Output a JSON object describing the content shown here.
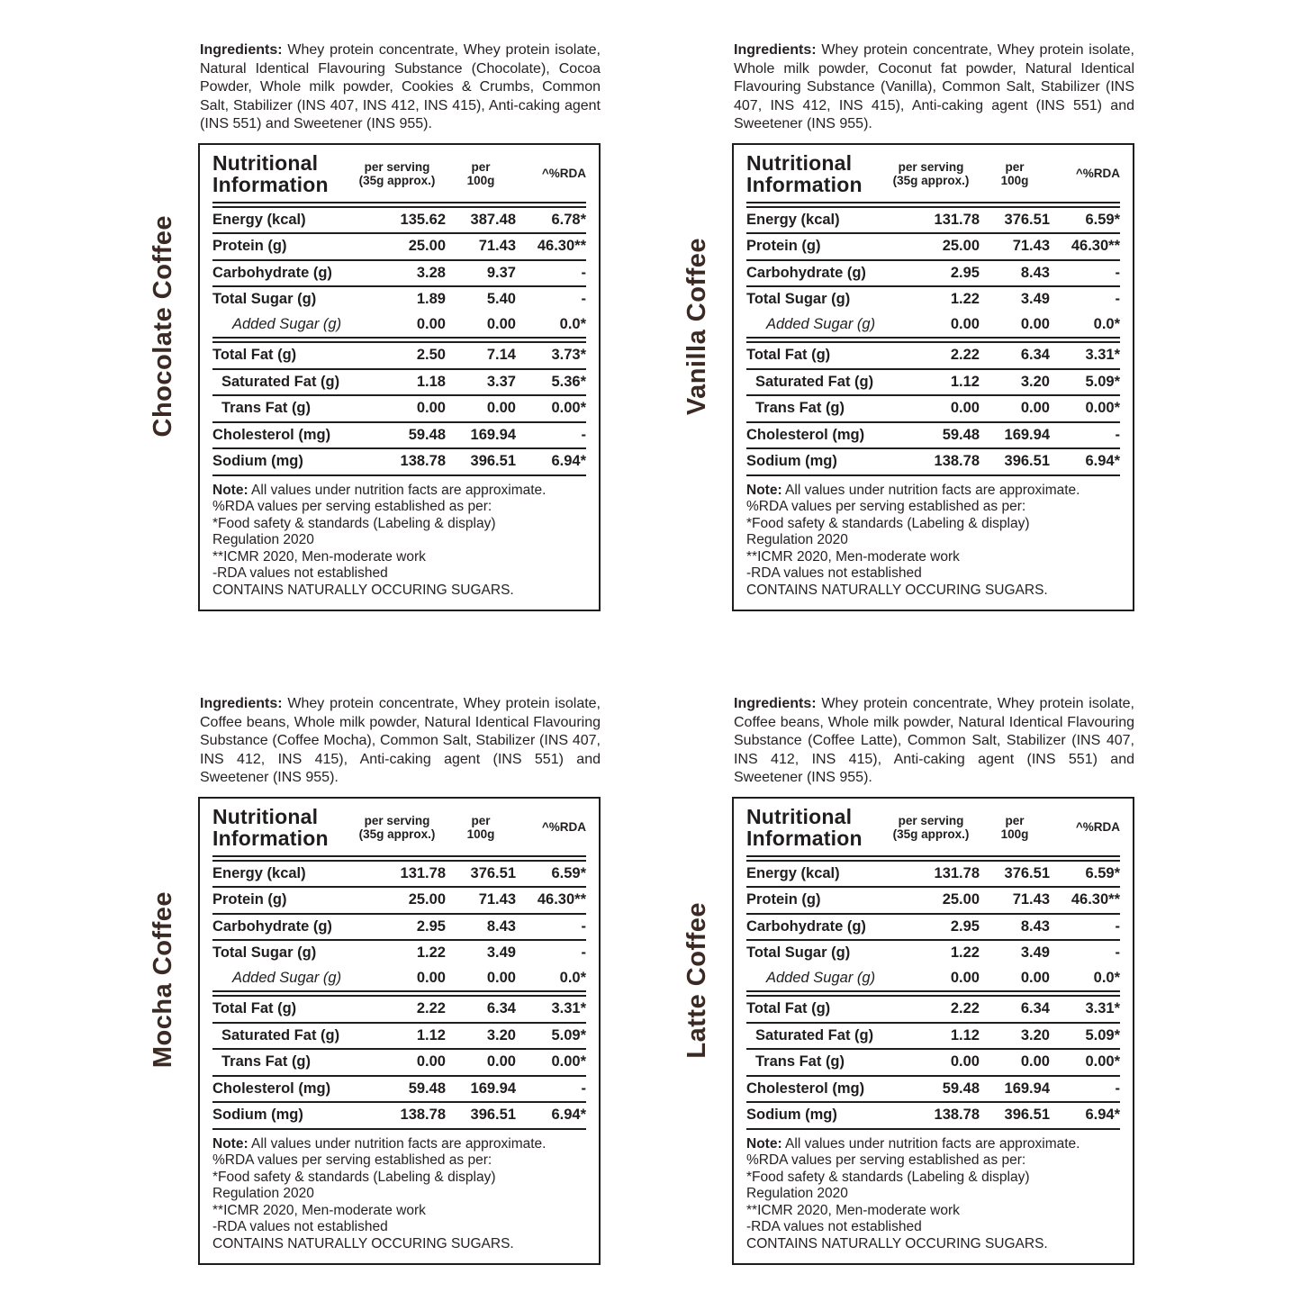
{
  "colors": {
    "background": "#ffffff",
    "text": "#262122",
    "flavor_label": "#3a2a23",
    "border": "#201d1e"
  },
  "ingredients_prefix": "Ingredients:",
  "table_header": {
    "title_line1": "Nutritional",
    "title_line2": "Information",
    "col_serving_line1": "per serving",
    "col_serving_line2": "(35g approx.)",
    "col_per100_line1": "per",
    "col_per100_line2": "100g",
    "col_rda": "^%RDA"
  },
  "note": {
    "prefix": "Note:",
    "first_line": "All values under nutrition facts are approximate.",
    "lines": [
      "%RDA values per serving established as per:",
      "*Food safety & standards (Labeling & display)",
      "Regulation 2020",
      "**ICMR 2020, Men-moderate work",
      "-RDA values not established",
      "CONTAINS NATURALLY OCCURING SUGARS."
    ]
  },
  "panels": [
    {
      "flavor_label": "Chocolate Coffee",
      "ingredients": "Whey protein concentrate, Whey protein isolate, Natural Identical Flavouring Substance (Chocolate), Cocoa Powder, Whole milk powder, Cookies & Crumbs, Common Salt, Stabilizer (INS 407, INS 412, INS 415), Anti-caking agent (INS 551) and Sweetener (INS 955).",
      "rows": [
        {
          "label": "Energy (kcal)",
          "serving": "135.62",
          "per100g": "387.48",
          "rda": "6.78*",
          "indent": 0,
          "italic": false,
          "sep": "single"
        },
        {
          "label": "Protein (g)",
          "serving": "25.00",
          "per100g": "71.43",
          "rda": "46.30**",
          "indent": 0,
          "italic": false,
          "sep": "single"
        },
        {
          "label": "Carbohydrate (g)",
          "serving": "3.28",
          "per100g": "9.37",
          "rda": "-",
          "indent": 0,
          "italic": false,
          "sep": "single"
        },
        {
          "label": "Total Sugar (g)",
          "serving": "1.89",
          "per100g": "5.40",
          "rda": "-",
          "indent": 0,
          "italic": false,
          "sep": "none"
        },
        {
          "label": "Added Sugar (g)",
          "serving": "0.00",
          "per100g": "0.00",
          "rda": "0.0*",
          "indent": 2,
          "italic": true,
          "sep": "double"
        },
        {
          "label": "Total Fat (g)",
          "serving": "2.50",
          "per100g": "7.14",
          "rda": "3.73*",
          "indent": 0,
          "italic": false,
          "sep": "single"
        },
        {
          "label": "Saturated Fat (g)",
          "serving": "1.18",
          "per100g": "3.37",
          "rda": "5.36*",
          "indent": 1,
          "italic": false,
          "sep": "single"
        },
        {
          "label": "Trans Fat (g)",
          "serving": "0.00",
          "per100g": "0.00",
          "rda": "0.00*",
          "indent": 1,
          "italic": false,
          "sep": "single"
        },
        {
          "label": "Cholesterol (mg)",
          "serving": "59.48",
          "per100g": "169.94",
          "rda": "-",
          "indent": 0,
          "italic": false,
          "sep": "single"
        },
        {
          "label": "Sodium (mg)",
          "serving": "138.78",
          "per100g": "396.51",
          "rda": "6.94*",
          "indent": 0,
          "italic": false,
          "sep": "single"
        }
      ]
    },
    {
      "flavor_label": "Vanilla Coffee",
      "ingredients": "Whey protein concentrate, Whey protein isolate, Whole milk powder, Coconut fat powder, Natural Identical Flavouring Substance (Vanilla), Common Salt, Stabilizer (INS 407, INS 412, INS 415), Anti-caking agent (INS 551) and Sweetener (INS 955).",
      "rows": [
        {
          "label": "Energy (kcal)",
          "serving": "131.78",
          "per100g": "376.51",
          "rda": "6.59*",
          "indent": 0,
          "italic": false,
          "sep": "single"
        },
        {
          "label": "Protein (g)",
          "serving": "25.00",
          "per100g": "71.43",
          "rda": "46.30**",
          "indent": 0,
          "italic": false,
          "sep": "single"
        },
        {
          "label": "Carbohydrate (g)",
          "serving": "2.95",
          "per100g": "8.43",
          "rda": "-",
          "indent": 0,
          "italic": false,
          "sep": "single"
        },
        {
          "label": "Total Sugar (g)",
          "serving": "1.22",
          "per100g": "3.49",
          "rda": "-",
          "indent": 0,
          "italic": false,
          "sep": "none"
        },
        {
          "label": "Added Sugar (g)",
          "serving": "0.00",
          "per100g": "0.00",
          "rda": "0.0*",
          "indent": 2,
          "italic": true,
          "sep": "double"
        },
        {
          "label": "Total Fat (g)",
          "serving": "2.22",
          "per100g": "6.34",
          "rda": "3.31*",
          "indent": 0,
          "italic": false,
          "sep": "single"
        },
        {
          "label": "Saturated Fat (g)",
          "serving": "1.12",
          "per100g": "3.20",
          "rda": "5.09*",
          "indent": 1,
          "italic": false,
          "sep": "single"
        },
        {
          "label": "Trans Fat (g)",
          "serving": "0.00",
          "per100g": "0.00",
          "rda": "0.00*",
          "indent": 1,
          "italic": false,
          "sep": "single"
        },
        {
          "label": "Cholesterol (mg)",
          "serving": "59.48",
          "per100g": "169.94",
          "rda": "-",
          "indent": 0,
          "italic": false,
          "sep": "single"
        },
        {
          "label": "Sodium (mg)",
          "serving": "138.78",
          "per100g": "396.51",
          "rda": "6.94*",
          "indent": 0,
          "italic": false,
          "sep": "single"
        }
      ]
    },
    {
      "flavor_label": "Mocha Coffee",
      "ingredients": "Whey protein concentrate, Whey protein isolate, Coffee beans, Whole milk powder, Natural Identical Flavouring Substance (Coffee Mocha), Common Salt, Stabilizer (INS 407, INS 412, INS 415), Anti-caking agent (INS 551) and Sweetener (INS 955).",
      "rows": [
        {
          "label": "Energy (kcal)",
          "serving": "131.78",
          "per100g": "376.51",
          "rda": "6.59*",
          "indent": 0,
          "italic": false,
          "sep": "single"
        },
        {
          "label": "Protein (g)",
          "serving": "25.00",
          "per100g": "71.43",
          "rda": "46.30**",
          "indent": 0,
          "italic": false,
          "sep": "single"
        },
        {
          "label": "Carbohydrate (g)",
          "serving": "2.95",
          "per100g": "8.43",
          "rda": "-",
          "indent": 0,
          "italic": false,
          "sep": "single"
        },
        {
          "label": "Total Sugar (g)",
          "serving": "1.22",
          "per100g": "3.49",
          "rda": "-",
          "indent": 0,
          "italic": false,
          "sep": "none"
        },
        {
          "label": "Added Sugar (g)",
          "serving": "0.00",
          "per100g": "0.00",
          "rda": "0.0*",
          "indent": 2,
          "italic": true,
          "sep": "double"
        },
        {
          "label": "Total Fat (g)",
          "serving": "2.22",
          "per100g": "6.34",
          "rda": "3.31*",
          "indent": 0,
          "italic": false,
          "sep": "single"
        },
        {
          "label": "Saturated Fat (g)",
          "serving": "1.12",
          "per100g": "3.20",
          "rda": "5.09*",
          "indent": 1,
          "italic": false,
          "sep": "single"
        },
        {
          "label": "Trans Fat (g)",
          "serving": "0.00",
          "per100g": "0.00",
          "rda": "0.00*",
          "indent": 1,
          "italic": false,
          "sep": "single"
        },
        {
          "label": "Cholesterol (mg)",
          "serving": "59.48",
          "per100g": "169.94",
          "rda": "-",
          "indent": 0,
          "italic": false,
          "sep": "single"
        },
        {
          "label": "Sodium (mg)",
          "serving": "138.78",
          "per100g": "396.51",
          "rda": "6.94*",
          "indent": 0,
          "italic": false,
          "sep": "single"
        }
      ]
    },
    {
      "flavor_label": "Latte Coffee",
      "ingredients": "Whey protein concentrate, Whey protein isolate, Coffee beans, Whole milk powder, Natural Identical Flavouring Substance (Coffee Latte), Common Salt, Stabilizer (INS 407, INS 412, INS 415), Anti-caking agent (INS 551) and Sweetener (INS 955).",
      "rows": [
        {
          "label": "Energy (kcal)",
          "serving": "131.78",
          "per100g": "376.51",
          "rda": "6.59*",
          "indent": 0,
          "italic": false,
          "sep": "single"
        },
        {
          "label": "Protein (g)",
          "serving": "25.00",
          "per100g": "71.43",
          "rda": "46.30**",
          "indent": 0,
          "italic": false,
          "sep": "single"
        },
        {
          "label": "Carbohydrate (g)",
          "serving": "2.95",
          "per100g": "8.43",
          "rda": "-",
          "indent": 0,
          "italic": false,
          "sep": "single"
        },
        {
          "label": "Total Sugar (g)",
          "serving": "1.22",
          "per100g": "3.49",
          "rda": "-",
          "indent": 0,
          "italic": false,
          "sep": "none"
        },
        {
          "label": "Added Sugar (g)",
          "serving": "0.00",
          "per100g": "0.00",
          "rda": "0.0*",
          "indent": 2,
          "italic": true,
          "sep": "double"
        },
        {
          "label": "Total Fat (g)",
          "serving": "2.22",
          "per100g": "6.34",
          "rda": "3.31*",
          "indent": 0,
          "italic": false,
          "sep": "single"
        },
        {
          "label": "Saturated Fat (g)",
          "serving": "1.12",
          "per100g": "3.20",
          "rda": "5.09*",
          "indent": 1,
          "italic": false,
          "sep": "single"
        },
        {
          "label": "Trans Fat (g)",
          "serving": "0.00",
          "per100g": "0.00",
          "rda": "0.00*",
          "indent": 1,
          "italic": false,
          "sep": "single"
        },
        {
          "label": "Cholesterol (mg)",
          "serving": "59.48",
          "per100g": "169.94",
          "rda": "-",
          "indent": 0,
          "italic": false,
          "sep": "single"
        },
        {
          "label": "Sodium (mg)",
          "serving": "138.78",
          "per100g": "396.51",
          "rda": "6.94*",
          "indent": 0,
          "italic": false,
          "sep": "single"
        }
      ]
    }
  ]
}
